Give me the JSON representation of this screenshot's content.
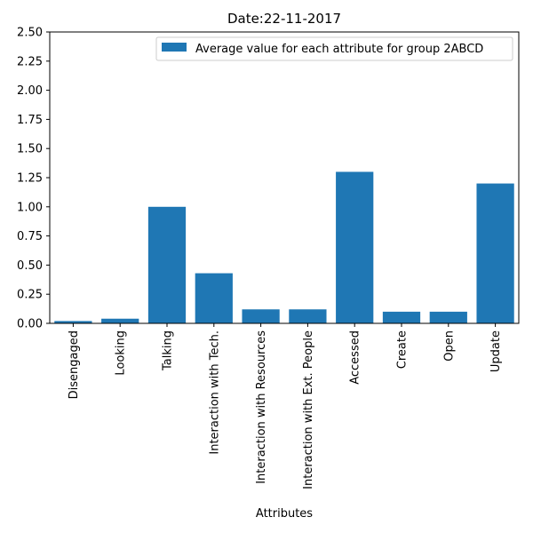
{
  "chart_data": {
    "type": "bar",
    "title": "Date:22-11-2017",
    "xlabel": "Attributes",
    "ylabel": "",
    "ylim": [
      0,
      2.5
    ],
    "yticks": [
      "0.00",
      "0.25",
      "0.50",
      "0.75",
      "1.00",
      "1.25",
      "1.50",
      "1.75",
      "2.00",
      "2.25",
      "2.50"
    ],
    "categories": [
      "Disengaged",
      "Looking",
      "Talking",
      "Interaction with Tech.",
      "Interaction with Resources",
      "Interaction with Ext. People",
      "Accessed",
      "Create",
      "Open",
      "Update"
    ],
    "series": [
      {
        "name": "Average value for each attribute for group 2ABCD",
        "values": [
          0.02,
          0.04,
          1.0,
          0.43,
          0.12,
          0.12,
          1.3,
          0.1,
          0.1,
          1.2
        ],
        "color": "#1f77b4"
      }
    ],
    "grid": false,
    "legend_position": "top-right"
  }
}
